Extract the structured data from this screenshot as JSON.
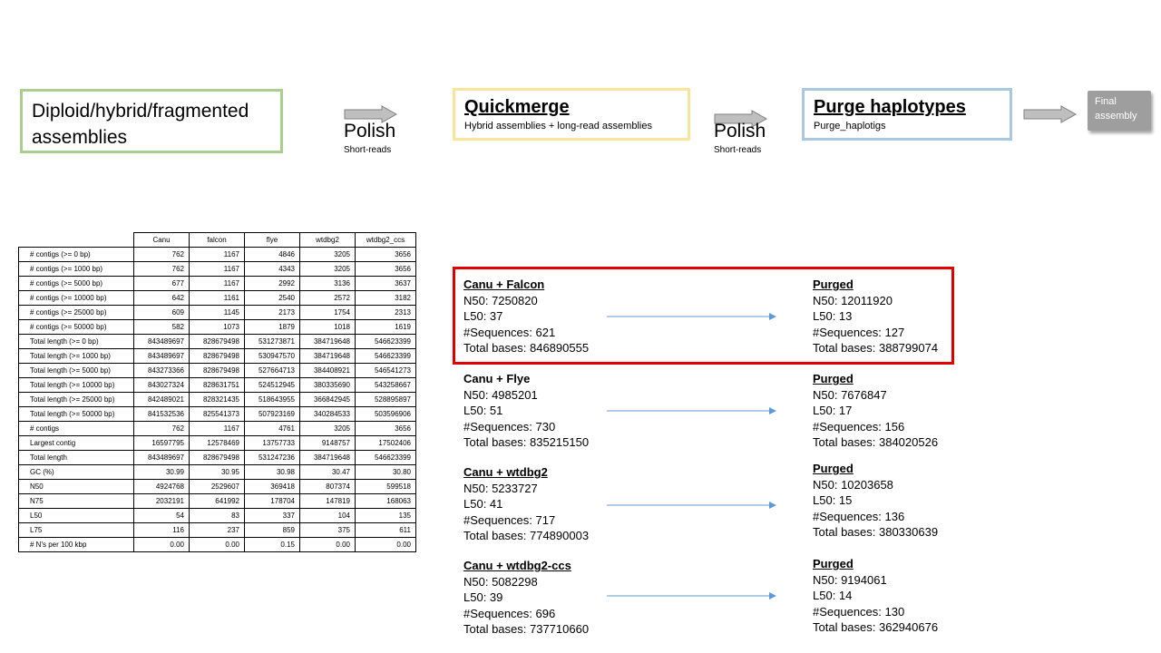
{
  "pipeline": {
    "assemblies": {
      "title_line1": "Diploid/hybrid/fragmented",
      "title_line2": "assemblies"
    },
    "polish1": {
      "label": "Polish",
      "sub": "Short-reads"
    },
    "quickmerge": {
      "title": "Quickmerge",
      "subtitle": "Hybrid assemblies + long-read assemblies"
    },
    "polish2": {
      "label": "Polish",
      "sub": "Short-reads"
    },
    "purge": {
      "title": "Purge haplotypes",
      "subtitle": "Purge_haplotigs"
    },
    "final": {
      "line1": "Final",
      "line2": "assembly"
    },
    "colors": {
      "assemblies_border": "#a9cf8f",
      "quickmerge_border": "#fbe59a",
      "purge_border": "#a9c8e3",
      "final_fill": "#9e9e9e",
      "arrow_fill": "#bfbfbf",
      "connector": "#5b9bd5",
      "highlight": "#e00000"
    }
  },
  "stats_table": {
    "columns": [
      "Canu",
      "falcon",
      "flye",
      "wtdbg2",
      "wtdbg2_ccs"
    ],
    "rows": [
      {
        "label": "# contigs (>= 0 bp)",
        "values": [
          "762",
          "1167",
          "4846",
          "3205",
          "3656"
        ]
      },
      {
        "label": "# contigs (>= 1000 bp)",
        "values": [
          "762",
          "1167",
          "4343",
          "3205",
          "3656"
        ]
      },
      {
        "label": "# contigs (>= 5000 bp)",
        "values": [
          "677",
          "1167",
          "2992",
          "3136",
          "3637"
        ]
      },
      {
        "label": "# contigs (>= 10000 bp)",
        "values": [
          "642",
          "1161",
          "2540",
          "2572",
          "3182"
        ]
      },
      {
        "label": "# contigs (>= 25000 bp)",
        "values": [
          "609",
          "1145",
          "2173",
          "1754",
          "2313"
        ]
      },
      {
        "label": "# contigs (>= 50000 bp)",
        "values": [
          "582",
          "1073",
          "1879",
          "1018",
          "1619"
        ]
      },
      {
        "label": "Total length (>= 0 bp)",
        "values": [
          "843489697",
          "828679498",
          "531273871",
          "384719648",
          "546623399"
        ]
      },
      {
        "label": "Total length (>= 1000 bp)",
        "values": [
          "843489697",
          "828679498",
          "530947570",
          "384719648",
          "546623399"
        ]
      },
      {
        "label": "Total length (>= 5000 bp)",
        "values": [
          "843273366",
          "828679498",
          "527664713",
          "384408921",
          "546541273"
        ]
      },
      {
        "label": "Total length (>= 10000 bp)",
        "values": [
          "843027324",
          "828631751",
          "524512945",
          "380335690",
          "543258667"
        ]
      },
      {
        "label": "Total length (>= 25000 bp)",
        "values": [
          "842489021",
          "828321435",
          "518643955",
          "366842945",
          "528895897"
        ]
      },
      {
        "label": "Total length (>= 50000 bp)",
        "values": [
          "841532536",
          "825541373",
          "507923169",
          "340284533",
          "503596906"
        ]
      },
      {
        "label": "# contigs",
        "values": [
          "762",
          "1167",
          "4761",
          "3205",
          "3656"
        ]
      },
      {
        "label": "Largest contig",
        "values": [
          "16597795",
          "12578469",
          "13757733",
          "9148757",
          "17502406"
        ]
      },
      {
        "label": "Total length",
        "values": [
          "843489697",
          "828679498",
          "531247236",
          "384719648",
          "546623399"
        ]
      },
      {
        "label": "GC (%)",
        "values": [
          "30.99",
          "30.95",
          "30.98",
          "30.47",
          "30.80"
        ]
      },
      {
        "label": "N50",
        "values": [
          "4924768",
          "2529607",
          "369418",
          "807374",
          "599518"
        ]
      },
      {
        "label": "N75",
        "values": [
          "2032191",
          "641992",
          "178704",
          "147819",
          "168063"
        ]
      },
      {
        "label": "L50",
        "values": [
          "54",
          "83",
          "337",
          "104",
          "135"
        ]
      },
      {
        "label": "L75",
        "values": [
          "116",
          "237",
          "859",
          "375",
          "611"
        ]
      },
      {
        "label": "# N's per 100 kbp",
        "values": [
          "0.00",
          "0.00",
          "0.15",
          "0.00",
          "0.00"
        ]
      }
    ]
  },
  "merges": [
    {
      "name": "Canu + Falcon",
      "n50": "N50: 7250820",
      "l50": "L50: 37",
      "seqs": "#Sequences: 621",
      "bases": "Total bases: 846890555",
      "purged": {
        "name": "Purged",
        "n50": "N50: 12011920",
        "l50": "L50: 13",
        "seqs": "#Sequences: 127",
        "bases": "Total bases: 388799074"
      }
    },
    {
      "name": "Canu + Flye",
      "n50": "N50: 4985201",
      "l50": "L50: 51",
      "seqs": "#Sequences: 730",
      "bases": "Total bases: 835215150",
      "purged": {
        "name": "Purged",
        "n50": "N50: 7676847",
        "l50": "L50: 17",
        "seqs": "#Sequences: 156",
        "bases": "Total bases: 384020526"
      }
    },
    {
      "name": "Canu + wtdbg2",
      "n50": "N50: 5233727",
      "l50": "L50: 41",
      "seqs": "#Sequences: 717",
      "bases": "Total bases: 774890003",
      "purged": {
        "name": "Purged",
        "n50": "N50: 10203658",
        "l50": "L50: 15",
        "seqs": "#Sequences: 136",
        "bases": "Total bases: 380330639"
      }
    },
    {
      "name": "Canu + wtdbg2-ccs",
      "n50": "N50: 5082298",
      "l50": "L50: 39",
      "seqs": "#Sequences: 696",
      "bases": "Total bases: 737710660",
      "purged": {
        "name": "Purged",
        "n50": "N50: 9194061",
        "l50": "L50: 14",
        "seqs": "#Sequences: 130",
        "bases": "Total bases: 362940676"
      }
    }
  ]
}
